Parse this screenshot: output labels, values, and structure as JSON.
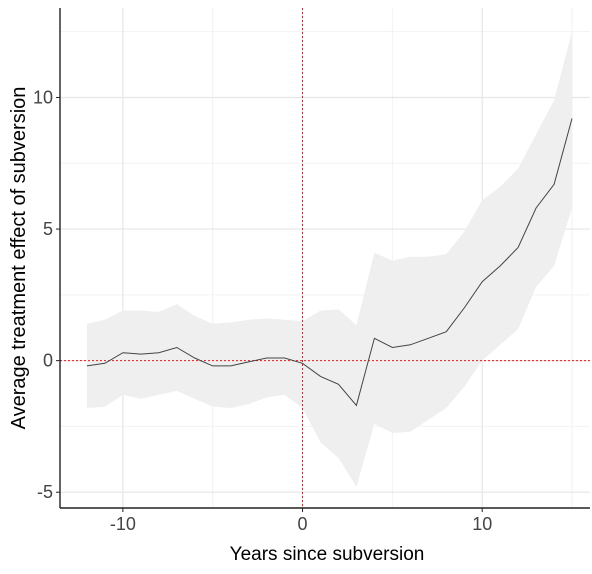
{
  "chart_data": {
    "type": "line",
    "title": "",
    "xlabel": "Years since subversion",
    "ylabel": "Average treatment effect of subversion",
    "xlim": [
      -13.5,
      16
    ],
    "ylim": [
      -5.6,
      13.4
    ],
    "x_ticks": [
      -10,
      0,
      10
    ],
    "x_tick_labels": [
      "-10",
      "0",
      "10"
    ],
    "y_ticks": [
      -5,
      0,
      5,
      10
    ],
    "y_tick_labels": [
      "-5",
      "0",
      "5",
      "10"
    ],
    "grid": true,
    "legend": "none",
    "reference_lines": {
      "x": 0,
      "y": 0,
      "color": "#e41a1c",
      "style": "dotted"
    },
    "series": [
      {
        "x": [
          -12,
          -11,
          -10,
          -9,
          -8,
          -7,
          -6,
          -5,
          -4,
          -3,
          -2,
          -1,
          0,
          1,
          2,
          3,
          4,
          5,
          6,
          7,
          8,
          9,
          10,
          11,
          12,
          13,
          14,
          15
        ],
        "values": [
          -0.2,
          -0.1,
          0.3,
          0.25,
          0.3,
          0.5,
          0.1,
          -0.2,
          -0.2,
          -0.05,
          0.1,
          0.1,
          -0.1,
          -0.6,
          -0.9,
          -1.7,
          0.85,
          0.5,
          0.6,
          0.85,
          1.1,
          2.0,
          3.0,
          3.6,
          4.3,
          5.8,
          6.7,
          9.2
        ],
        "ci_lower": [
          -1.8,
          -1.75,
          -1.3,
          -1.45,
          -1.3,
          -1.15,
          -1.45,
          -1.75,
          -1.8,
          -1.65,
          -1.4,
          -1.3,
          -1.8,
          -3.1,
          -3.7,
          -4.8,
          -2.4,
          -2.75,
          -2.7,
          -2.25,
          -1.8,
          -1.0,
          0.0,
          0.6,
          1.2,
          2.8,
          3.6,
          5.8
        ],
        "ci_upper": [
          1.4,
          1.55,
          1.9,
          1.9,
          1.85,
          2.15,
          1.7,
          1.4,
          1.45,
          1.55,
          1.6,
          1.55,
          1.5,
          1.9,
          1.95,
          1.35,
          4.1,
          3.8,
          3.95,
          3.95,
          4.05,
          4.9,
          6.1,
          6.6,
          7.3,
          8.6,
          9.9,
          12.5
        ],
        "line_color": "#444444",
        "band_color": "#efefef"
      }
    ]
  }
}
